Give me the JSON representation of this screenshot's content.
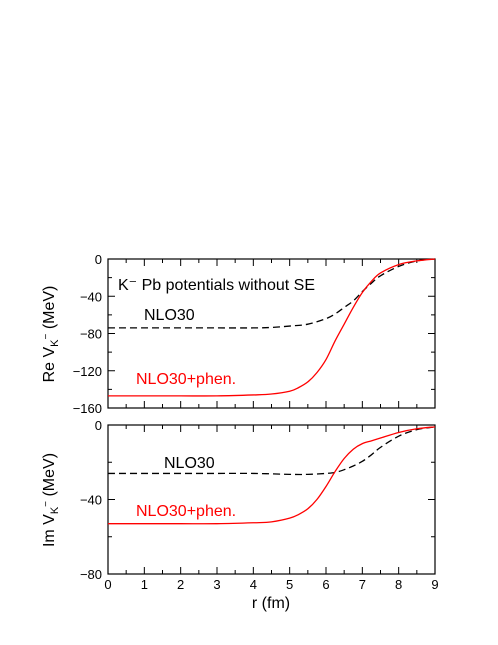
{
  "chart_data": [
    {
      "type": "line",
      "panel": "top",
      "annotation": "K⁻ Pb potentials without SE",
      "ylabel": "Re V_K⁻ (MeV)",
      "ylabel_main": "Re V",
      "ylabel_sub": "K",
      "ylabel_sup": "−",
      "ylabel_unit": "(MeV)",
      "xlim": [
        0,
        9
      ],
      "ylim": [
        -160,
        0
      ],
      "yticks": [
        0,
        -40,
        -80,
        -120,
        -160
      ],
      "ytick_labels": [
        "0",
        "−40",
        "−80",
        "−120",
        "−160"
      ],
      "series": [
        {
          "name": "NLO30",
          "color": "#000000",
          "style": "dashed",
          "x": [
            0,
            1,
            2,
            3,
            4,
            4.5,
            5,
            5.5,
            6,
            6.25,
            6.5,
            6.75,
            7,
            7.25,
            7.5,
            8,
            8.5,
            9
          ],
          "y": [
            -74,
            -74,
            -74,
            -74,
            -74,
            -73.5,
            -72,
            -70,
            -64,
            -59,
            -52,
            -45,
            -35,
            -26,
            -18,
            -8,
            -2,
            0
          ]
        },
        {
          "name": "NLO30+phen.",
          "color": "#ff0000",
          "style": "solid",
          "x": [
            0,
            1,
            2,
            3,
            4,
            4.5,
            5,
            5.25,
            5.5,
            5.75,
            6,
            6.25,
            6.5,
            6.75,
            7,
            7.25,
            7.5,
            8,
            8.5,
            9
          ],
          "y": [
            -147,
            -147,
            -147,
            -147,
            -146,
            -145,
            -142,
            -138,
            -132,
            -122,
            -108,
            -88,
            -70,
            -52,
            -36,
            -24,
            -15,
            -6,
            -2,
            0
          ]
        }
      ]
    },
    {
      "type": "line",
      "panel": "bottom",
      "ylabel": "Im V_K⁻ (MeV)",
      "ylabel_main": "Im V",
      "ylabel_sub": "K",
      "ylabel_sup": "−",
      "ylabel_unit": "(MeV)",
      "xlabel": "r (fm)",
      "xlim": [
        0,
        9
      ],
      "ylim": [
        -80,
        0
      ],
      "xticks": [
        "0",
        "1",
        "2",
        "3",
        "4",
        "5",
        "6",
        "7",
        "8",
        "9"
      ],
      "yticks": [
        0,
        -40,
        -80
      ],
      "ytick_labels": [
        "0",
        "−40",
        "−80"
      ],
      "series": [
        {
          "name": "NLO30",
          "color": "#000000",
          "style": "dashed",
          "x": [
            0,
            1,
            2,
            3,
            4,
            5,
            5.5,
            6,
            6.25,
            6.5,
            6.75,
            7,
            7.25,
            7.5,
            8,
            8.5,
            9
          ],
          "y": [
            -26,
            -26,
            -26,
            -26,
            -26,
            -26.5,
            -26.5,
            -26,
            -25.5,
            -24,
            -22,
            -19.5,
            -16,
            -12,
            -6,
            -2.5,
            -1
          ]
        },
        {
          "name": "NLO30+phen.",
          "color": "#ff0000",
          "style": "solid",
          "x": [
            0,
            1,
            2,
            3,
            4,
            4.5,
            5,
            5.25,
            5.5,
            5.75,
            6,
            6.25,
            6.5,
            6.75,
            7,
            7.25,
            7.5,
            8,
            8.5,
            9
          ],
          "y": [
            -53,
            -53,
            -53,
            -53,
            -52.5,
            -52,
            -50,
            -48,
            -45,
            -40,
            -33,
            -25,
            -18,
            -13,
            -10,
            -8.5,
            -7,
            -4,
            -2,
            -1
          ]
        }
      ]
    }
  ]
}
